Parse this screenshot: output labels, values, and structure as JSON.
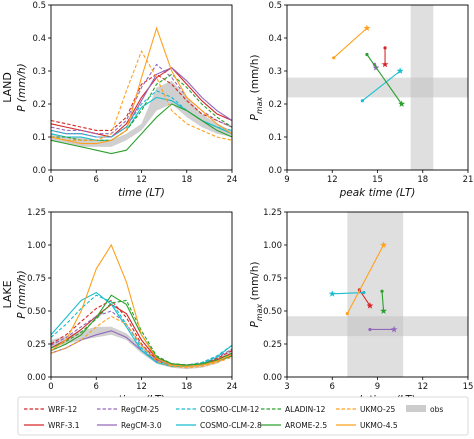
{
  "chart_data": [
    {
      "type": "line",
      "row_label": "LAND",
      "xlabel": "time (LT)",
      "ylabel": "P (mm/h)",
      "xlim": [
        0,
        24
      ],
      "ylim": [
        0,
        0.5
      ],
      "xticks": [
        0,
        6,
        12,
        18,
        24
      ],
      "yticks": [
        "0.0",
        "0.1",
        "0.2",
        "0.3",
        "0.4",
        "0.5"
      ],
      "x": [
        0,
        2,
        4,
        6,
        8,
        10,
        12,
        14,
        16,
        18,
        20,
        22,
        24
      ],
      "obs_band": {
        "lower": [
          0.09,
          0.08,
          0.07,
          0.07,
          0.07,
          0.09,
          0.12,
          0.18,
          0.2,
          0.16,
          0.13,
          0.11,
          0.1
        ],
        "upper": [
          0.11,
          0.1,
          0.1,
          0.09,
          0.09,
          0.11,
          0.14,
          0.25,
          0.27,
          0.22,
          0.17,
          0.14,
          0.12
        ]
      },
      "series": [
        {
          "name": "WRF-12",
          "style": "dashed",
          "color": "#d62728",
          "values": [
            0.15,
            0.14,
            0.13,
            0.12,
            0.12,
            0.16,
            0.26,
            0.29,
            0.26,
            0.21,
            0.17,
            0.15,
            0.13
          ]
        },
        {
          "name": "WRF-3.1",
          "style": "solid",
          "color": "#d62728",
          "values": [
            0.14,
            0.13,
            0.12,
            0.11,
            0.1,
            0.14,
            0.22,
            0.28,
            0.31,
            0.26,
            0.21,
            0.17,
            0.15
          ]
        },
        {
          "name": "RegCM-25",
          "style": "dashed",
          "color": "#9467bd",
          "values": [
            0.13,
            0.12,
            0.12,
            0.11,
            0.11,
            0.15,
            0.25,
            0.32,
            0.28,
            0.22,
            0.18,
            0.15,
            0.13
          ]
        },
        {
          "name": "RegCM-3.0",
          "style": "solid",
          "color": "#9467bd",
          "values": [
            0.12,
            0.11,
            0.11,
            0.1,
            0.1,
            0.13,
            0.21,
            0.29,
            0.31,
            0.27,
            0.22,
            0.18,
            0.15
          ]
        },
        {
          "name": "COSMO-CLM-12",
          "style": "dashed",
          "color": "#17becf",
          "values": [
            0.12,
            0.11,
            0.11,
            0.1,
            0.1,
            0.13,
            0.2,
            0.24,
            0.22,
            0.18,
            0.15,
            0.13,
            0.12
          ]
        },
        {
          "name": "COSMO-CLM-2.8",
          "style": "solid",
          "color": "#17becf",
          "values": [
            0.11,
            0.1,
            0.1,
            0.09,
            0.09,
            0.12,
            0.19,
            0.22,
            0.21,
            0.18,
            0.15,
            0.13,
            0.11
          ]
        },
        {
          "name": "ALADIN-12",
          "style": "dashed",
          "color": "#2ca02c",
          "values": [
            0.1,
            0.1,
            0.09,
            0.09,
            0.09,
            0.12,
            0.18,
            0.26,
            0.29,
            0.25,
            0.2,
            0.16,
            0.13
          ]
        },
        {
          "name": "AROME-2.5",
          "style": "solid",
          "color": "#2ca02c",
          "values": [
            0.09,
            0.08,
            0.07,
            0.06,
            0.05,
            0.06,
            0.11,
            0.16,
            0.2,
            0.18,
            0.15,
            0.12,
            0.1
          ]
        },
        {
          "name": "UKMO-25",
          "style": "dashed",
          "color": "#ffa01e",
          "values": [
            0.1,
            0.09,
            0.09,
            0.09,
            0.11,
            0.24,
            0.36,
            0.28,
            0.18,
            0.14,
            0.12,
            0.1,
            0.09
          ]
        },
        {
          "name": "UKMO-4.5",
          "style": "solid",
          "color": "#ffa01e",
          "values": [
            0.1,
            0.09,
            0.08,
            0.08,
            0.09,
            0.12,
            0.28,
            0.43,
            0.3,
            0.22,
            0.18,
            0.14,
            0.11
          ]
        }
      ]
    },
    {
      "type": "scatter",
      "xlabel": "peak time (LT)",
      "ylabel": "P_max (mm/h)",
      "xlim": [
        9,
        21
      ],
      "ylim": [
        0,
        0.5
      ],
      "xticks": [
        9,
        12,
        15,
        18,
        21
      ],
      "yticks": [
        "0.0",
        "0.1",
        "0.2",
        "0.3",
        "0.4",
        "0.5"
      ],
      "obs_band_x": [
        17.2,
        18.7
      ],
      "obs_band_y": [
        0.22,
        0.28
      ],
      "arrows": [
        {
          "name": "WRF",
          "color": "#d62728",
          "from": [
            15.5,
            0.37
          ],
          "to": [
            15.5,
            0.32
          ]
        },
        {
          "name": "RegCM",
          "color": "#9467bd",
          "from": [
            14.8,
            0.32
          ],
          "to": [
            14.9,
            0.31
          ]
        },
        {
          "name": "COSMO-CLM",
          "color": "#17becf",
          "from": [
            14.0,
            0.21
          ],
          "to": [
            16.5,
            0.3
          ]
        },
        {
          "name": "ALADIN/AROME",
          "color": "#2ca02c",
          "from": [
            14.3,
            0.35
          ],
          "to": [
            16.6,
            0.2
          ]
        },
        {
          "name": "UKMO",
          "color": "#ffa01e",
          "from": [
            12.1,
            0.34
          ],
          "to": [
            14.3,
            0.43
          ]
        }
      ]
    },
    {
      "type": "line",
      "row_label": "LAKE",
      "xlabel": "time (LT)",
      "ylabel": "P (mm/h)",
      "xlim": [
        0,
        24
      ],
      "ylim": [
        0,
        1.25
      ],
      "xticks": [
        0,
        6,
        12,
        18,
        24
      ],
      "yticks": [
        "0.00",
        "0.25",
        "0.50",
        "0.75",
        "1.00",
        "1.25"
      ],
      "x": [
        0,
        2,
        4,
        6,
        8,
        10,
        12,
        14,
        16,
        18,
        20,
        22,
        24
      ],
      "obs_band": {
        "lower": [
          0.22,
          0.25,
          0.28,
          0.3,
          0.32,
          0.28,
          0.18,
          0.1,
          0.07,
          0.06,
          0.07,
          0.1,
          0.16
        ],
        "upper": [
          0.28,
          0.31,
          0.35,
          0.38,
          0.38,
          0.33,
          0.23,
          0.14,
          0.1,
          0.09,
          0.1,
          0.14,
          0.22
        ]
      },
      "series": [
        {
          "name": "WRF-12",
          "style": "dashed",
          "color": "#d62728",
          "values": [
            0.25,
            0.32,
            0.42,
            0.52,
            0.58,
            0.45,
            0.25,
            0.13,
            0.1,
            0.09,
            0.1,
            0.14,
            0.2
          ]
        },
        {
          "name": "WRF-3.1",
          "style": "solid",
          "color": "#d62728",
          "values": [
            0.22,
            0.28,
            0.36,
            0.46,
            0.55,
            0.48,
            0.28,
            0.14,
            0.1,
            0.09,
            0.1,
            0.13,
            0.18
          ]
        },
        {
          "name": "RegCM-25",
          "style": "dashed",
          "color": "#9467bd",
          "values": [
            0.24,
            0.3,
            0.38,
            0.46,
            0.5,
            0.4,
            0.24,
            0.13,
            0.1,
            0.09,
            0.11,
            0.15,
            0.21
          ]
        },
        {
          "name": "RegCM-3.0",
          "style": "solid",
          "color": "#9467bd",
          "values": [
            0.18,
            0.22,
            0.28,
            0.32,
            0.35,
            0.3,
            0.2,
            0.12,
            0.09,
            0.08,
            0.09,
            0.12,
            0.16
          ]
        },
        {
          "name": "COSMO-CLM-12",
          "style": "dashed",
          "color": "#17becf",
          "values": [
            0.3,
            0.4,
            0.52,
            0.62,
            0.57,
            0.4,
            0.22,
            0.12,
            0.09,
            0.09,
            0.11,
            0.16,
            0.24
          ]
        },
        {
          "name": "COSMO-CLM-2.8",
          "style": "solid",
          "color": "#17becf",
          "values": [
            0.32,
            0.45,
            0.58,
            0.64,
            0.55,
            0.38,
            0.2,
            0.11,
            0.08,
            0.08,
            0.1,
            0.15,
            0.24
          ]
        },
        {
          "name": "ALADIN-12",
          "style": "dashed",
          "color": "#2ca02c",
          "values": [
            0.22,
            0.27,
            0.34,
            0.44,
            0.56,
            0.58,
            0.35,
            0.16,
            0.1,
            0.09,
            0.1,
            0.13,
            0.18
          ]
        },
        {
          "name": "AROME-2.5",
          "style": "solid",
          "color": "#2ca02c",
          "values": [
            0.2,
            0.25,
            0.32,
            0.45,
            0.62,
            0.55,
            0.32,
            0.15,
            0.1,
            0.09,
            0.1,
            0.12,
            0.16
          ]
        },
        {
          "name": "UKMO-25",
          "style": "dashed",
          "color": "#ffa01e",
          "values": [
            0.18,
            0.22,
            0.28,
            0.38,
            0.46,
            0.4,
            0.24,
            0.12,
            0.08,
            0.07,
            0.08,
            0.11,
            0.15
          ]
        },
        {
          "name": "UKMO-4.5",
          "style": "solid",
          "color": "#ffa01e",
          "values": [
            0.2,
            0.28,
            0.5,
            0.82,
            1.0,
            0.72,
            0.32,
            0.14,
            0.09,
            0.08,
            0.09,
            0.12,
            0.17
          ]
        }
      ]
    },
    {
      "type": "scatter",
      "xlabel": "peak time (LT)",
      "ylabel": "P_max (mm/h)",
      "xlim": [
        3,
        15
      ],
      "ylim": [
        0,
        1.25
      ],
      "xticks": [
        3,
        6,
        9,
        12,
        15
      ],
      "yticks": [
        "0.00",
        "0.25",
        "0.50",
        "0.75",
        "1.00",
        "1.25"
      ],
      "obs_band_x": [
        7.0,
        10.7
      ],
      "obs_band_y": [
        0.31,
        0.46
      ],
      "arrows": [
        {
          "name": "WRF",
          "color": "#d62728",
          "from": [
            7.8,
            0.66
          ],
          "to": [
            8.5,
            0.54
          ]
        },
        {
          "name": "RegCM",
          "color": "#9467bd",
          "from": [
            8.5,
            0.36
          ],
          "to": [
            10.1,
            0.36
          ]
        },
        {
          "name": "COSMO-CLM",
          "color": "#17becf",
          "from": [
            8.1,
            0.64
          ],
          "to": [
            6.0,
            0.63
          ]
        },
        {
          "name": "ALADIN/AROME",
          "color": "#2ca02c",
          "from": [
            9.3,
            0.65
          ],
          "to": [
            9.4,
            0.5
          ]
        },
        {
          "name": "UKMO",
          "color": "#ffa01e",
          "from": [
            7.0,
            0.48
          ],
          "to": [
            9.4,
            1.0
          ]
        }
      ]
    }
  ],
  "legend": {
    "items": [
      {
        "label": "WRF-12",
        "color": "#d62728",
        "style": "dashed"
      },
      {
        "label": "RegCM-25",
        "color": "#9467bd",
        "style": "dashed"
      },
      {
        "label": "COSMO-CLM-12",
        "color": "#17becf",
        "style": "dashed"
      },
      {
        "label": "ALADIN-12",
        "color": "#2ca02c",
        "style": "dashed"
      },
      {
        "label": "UKMO-25",
        "color": "#ffa01e",
        "style": "dashed"
      },
      {
        "label": "obs",
        "color": "#cccccc",
        "style": "patch"
      },
      {
        "label": "WRF-3.1",
        "color": "#d62728",
        "style": "solid"
      },
      {
        "label": "RegCM-3.0",
        "color": "#9467bd",
        "style": "solid"
      },
      {
        "label": "COSMO-CLM-2.8",
        "color": "#17becf",
        "style": "solid"
      },
      {
        "label": "AROME-2.5",
        "color": "#2ca02c",
        "style": "solid"
      },
      {
        "label": "UKMO-4.5",
        "color": "#ffa01e",
        "style": "solid"
      }
    ]
  }
}
